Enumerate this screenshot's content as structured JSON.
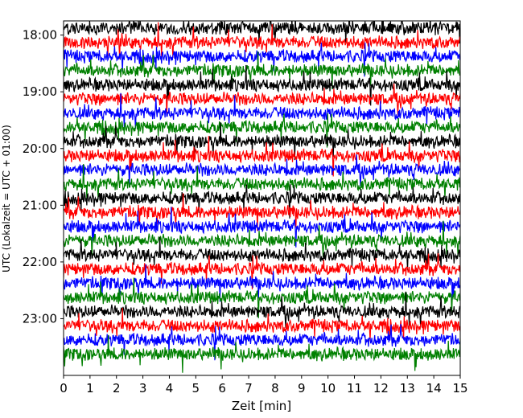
{
  "chart_data": {
    "type": "line",
    "title": "",
    "xlabel": "Zeit  [min]",
    "ylabel": "UTC (Lokalzeit = UTC + 01:00)",
    "xlim": [
      0,
      15
    ],
    "x_ticks": [
      "0",
      "1",
      "2",
      "3",
      "4",
      "5",
      "6",
      "7",
      "8",
      "9",
      "10",
      "11",
      "12",
      "13",
      "14",
      "15"
    ],
    "ylim_start": "17:45",
    "ylim_end": "24:00",
    "y_ticks": [
      "18:00",
      "19:00",
      "20:00",
      "21:00",
      "22:00",
      "23:00"
    ],
    "trace_interval_min": 15,
    "series_color_cycle": [
      "#000000",
      "#ff0000",
      "#0000ff",
      "#008000"
    ],
    "trace_start_times": [
      "17:45",
      "18:00",
      "18:15",
      "18:30",
      "18:45",
      "19:00",
      "19:15",
      "19:30",
      "19:45",
      "20:00",
      "20:15",
      "20:30",
      "20:45",
      "21:00",
      "21:15",
      "21:30",
      "21:45",
      "22:00",
      "22:15",
      "22:30",
      "22:45",
      "23:00",
      "23:15",
      "23:30"
    ]
  }
}
